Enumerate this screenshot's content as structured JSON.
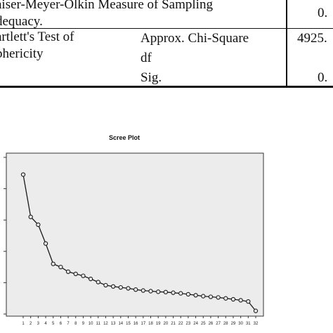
{
  "table": {
    "kmo_label_line1": "aiser-Meyer-Olkin Measure of Sampling",
    "kmo_label_line2": "dequacy.",
    "kmo_value": "0.",
    "bartlett_label_line1": "artlett's Test of",
    "bartlett_label_line2": "phericity",
    "chi_label": "Approx. Chi-Square",
    "chi_value": "4925.",
    "df_label": "df",
    "sig_label": "Sig.",
    "sig_value": "0."
  },
  "chart_data": {
    "type": "line",
    "title": "Scree Plot",
    "xlabel": "",
    "ylabel": "",
    "categories": [
      "1",
      "2",
      "3",
      "4",
      "5",
      "6",
      "7",
      "8",
      "9",
      "10",
      "11",
      "12",
      "13",
      "14",
      "15",
      "16",
      "17",
      "18",
      "19",
      "20",
      "21",
      "22",
      "23",
      "24",
      "25",
      "26",
      "27",
      "28",
      "29",
      "30",
      "31",
      "32"
    ],
    "values": [
      4.45,
      3.1,
      2.85,
      2.25,
      1.6,
      1.5,
      1.35,
      1.28,
      1.22,
      1.12,
      1.02,
      0.92,
      0.88,
      0.85,
      0.82,
      0.78,
      0.75,
      0.73,
      0.71,
      0.7,
      0.68,
      0.66,
      0.63,
      0.6,
      0.57,
      0.55,
      0.53,
      0.5,
      0.47,
      0.44,
      0.4,
      0.1
    ],
    "ylim": [
      0,
      5
    ],
    "grid": false,
    "marker": "open-circle",
    "colors": {
      "line": "#1a1a1a",
      "plot_bg": "#ececec",
      "frame": "#333333"
    }
  }
}
